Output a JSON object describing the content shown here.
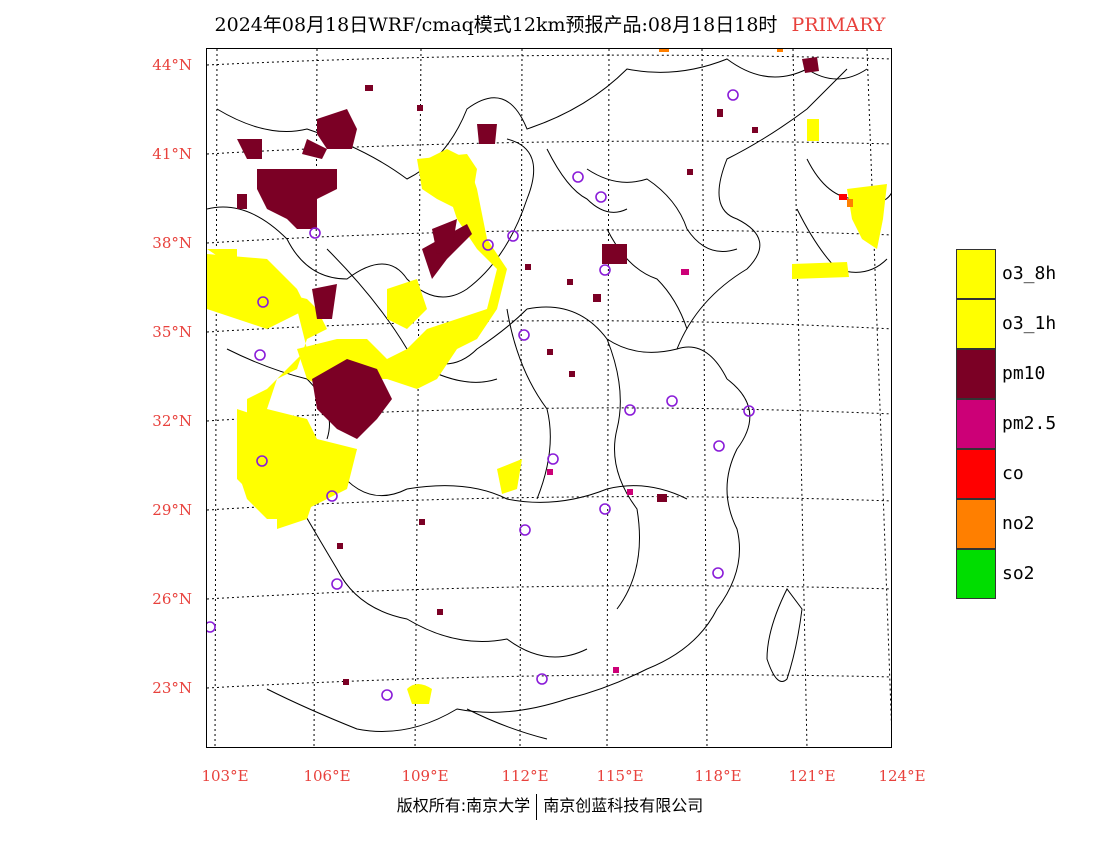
{
  "title": {
    "main": "2024年08月18日WRF/cmaq模式12km预报产品:08月18日18时",
    "tag": "PRIMARY"
  },
  "axes": {
    "lat_labels": [
      "44°N",
      "41°N",
      "38°N",
      "35°N",
      "32°N",
      "29°N",
      "26°N",
      "23°N"
    ],
    "lon_labels": [
      "103°E",
      "106°E",
      "109°E",
      "112°E",
      "115°E",
      "118°E",
      "121°E",
      "124°E"
    ]
  },
  "legend": [
    {
      "label": "o3_8h",
      "color": "#ffff00"
    },
    {
      "label": "o3_1h",
      "color": "#ffff00"
    },
    {
      "label": "pm10",
      "color": "#7b0025"
    },
    {
      "label": "pm2.5",
      "color": "#cc0077"
    },
    {
      "label": "co",
      "color": "#ff0000"
    },
    {
      "label": "no2",
      "color": "#ff7f00"
    },
    {
      "label": "so2",
      "color": "#00dd00"
    }
  ],
  "footer": {
    "left": "版权所有:南京大学",
    "right": "南京创蓝科技有限公司"
  },
  "colors": {
    "label_red": "#e8413c",
    "station": "#8a1cd8"
  }
}
